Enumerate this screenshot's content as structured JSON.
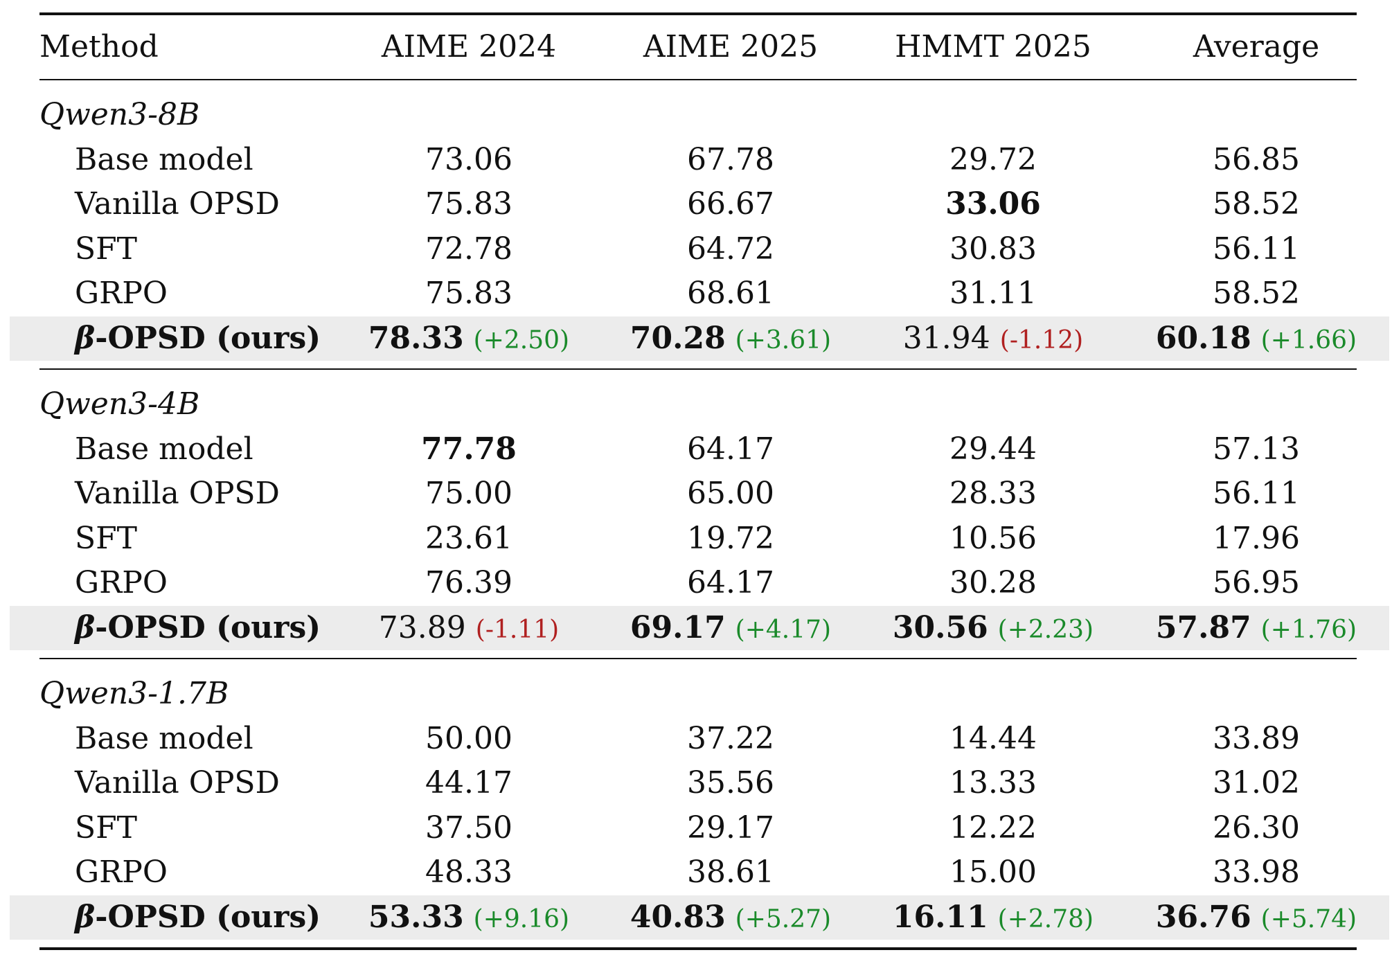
{
  "colors": {
    "positive": "#1a8a2a",
    "negative": "#b02020",
    "highlight_row": "#ececec"
  },
  "header": {
    "method": "Method",
    "c1": "AIME 2024",
    "c2": "AIME 2025",
    "c3": "HMMT 2025",
    "c4": "Average"
  },
  "groups": [
    {
      "name": "Qwen3-8B",
      "rows": [
        {
          "label": "Base model",
          "v": [
            "73.06",
            "67.78",
            "29.72",
            "56.85"
          ]
        },
        {
          "label": "Vanilla OPSD",
          "v": [
            "75.83",
            "66.67",
            "33.06",
            "58.52"
          ]
        },
        {
          "label": "SFT",
          "v": [
            "72.78",
            "64.72",
            "30.83",
            "56.11"
          ]
        },
        {
          "label": "GRPO",
          "v": [
            "75.83",
            "68.61",
            "31.11",
            "58.52"
          ]
        }
      ],
      "ours": {
        "label_greek": "β",
        "label_rest": "-OPSD (ours)",
        "v": [
          "78.33",
          "70.28",
          "31.94",
          "60.18"
        ],
        "d": [
          "(+2.50)",
          "(+3.61)",
          "(-1.12)",
          "(+1.66)"
        ]
      }
    },
    {
      "name": "Qwen3-4B",
      "rows": [
        {
          "label": "Base model",
          "v": [
            "77.78",
            "64.17",
            "29.44",
            "57.13"
          ]
        },
        {
          "label": "Vanilla OPSD",
          "v": [
            "75.00",
            "65.00",
            "28.33",
            "56.11"
          ]
        },
        {
          "label": "SFT",
          "v": [
            "23.61",
            "19.72",
            "10.56",
            "17.96"
          ]
        },
        {
          "label": "GRPO",
          "v": [
            "76.39",
            "64.17",
            "30.28",
            "56.95"
          ]
        }
      ],
      "ours": {
        "label_greek": "β",
        "label_rest": "-OPSD (ours)",
        "v": [
          "73.89",
          "69.17",
          "30.56",
          "57.87"
        ],
        "d": [
          "(-1.11)",
          "(+4.17)",
          "(+2.23)",
          "(+1.76)"
        ]
      }
    },
    {
      "name": "Qwen3-1.7B",
      "rows": [
        {
          "label": "Base model",
          "v": [
            "50.00",
            "37.22",
            "14.44",
            "33.89"
          ]
        },
        {
          "label": "Vanilla OPSD",
          "v": [
            "44.17",
            "35.56",
            "13.33",
            "31.02"
          ]
        },
        {
          "label": "SFT",
          "v": [
            "37.50",
            "29.17",
            "12.22",
            "26.30"
          ]
        },
        {
          "label": "GRPO",
          "v": [
            "48.33",
            "38.61",
            "15.00",
            "33.98"
          ]
        }
      ],
      "ours": {
        "label_greek": "β",
        "label_rest": "-OPSD (ours)",
        "v": [
          "53.33",
          "40.83",
          "16.11",
          "36.76"
        ],
        "d": [
          "(+9.16)",
          "(+5.27)",
          "(+2.78)",
          "(+5.74)"
        ]
      }
    }
  ]
}
